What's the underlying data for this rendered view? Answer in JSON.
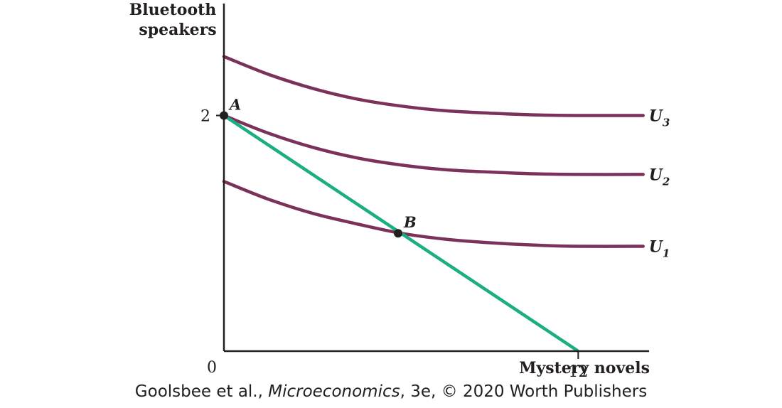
{
  "chart_data": {
    "type": "line",
    "ylabel": [
      "Bluetooth",
      "speakers"
    ],
    "xlabel": "Mystery novels",
    "origin_label": "0",
    "xlim": [
      0,
      14.4
    ],
    "ylim": [
      0,
      2.95
    ],
    "x_ticks": [
      {
        "value": 12,
        "label": "12"
      }
    ],
    "y_ticks": [
      {
        "value": 2,
        "label": "2"
      }
    ],
    "series": [
      {
        "name": "U",
        "subscript": "3",
        "x": [
          0,
          1.5,
          3,
          4.5,
          6,
          7.5,
          9,
          10.5,
          12,
          14.2
        ],
        "y": [
          2.5,
          2.35,
          2.23,
          2.14,
          2.08,
          2.04,
          2.02,
          2.005,
          2.0,
          2.0
        ]
      },
      {
        "name": "U",
        "subscript": "2",
        "x": [
          0,
          1.5,
          3,
          4.5,
          6,
          7.5,
          9,
          10.5,
          12,
          14.2
        ],
        "y": [
          2.0,
          1.85,
          1.73,
          1.64,
          1.58,
          1.54,
          1.52,
          1.505,
          1.5,
          1.5
        ]
      },
      {
        "name": "U",
        "subscript": "1",
        "x": [
          0,
          1.5,
          3,
          4.5,
          6,
          7.5,
          9,
          10.5,
          12,
          14.2
        ],
        "y": [
          1.44,
          1.29,
          1.17,
          1.08,
          1.0,
          0.95,
          0.92,
          0.9,
          0.89,
          0.89
        ]
      }
    ],
    "budget_line": {
      "x": [
        0,
        12
      ],
      "y": [
        2,
        0
      ]
    },
    "points": [
      {
        "label": "A",
        "x": 0,
        "y": 2
      },
      {
        "label": "B",
        "x": 5.9,
        "y": 1.0
      }
    ],
    "colors": {
      "indifference": "#7b3159",
      "budget": "#1aae82",
      "axis": "#231f20",
      "point": "#231f20"
    },
    "grid": false
  },
  "credit": {
    "authors": "Goolsbee et al., ",
    "work": "Microeconomics",
    "rest": ", 3e, © 2020 Worth Publishers"
  }
}
